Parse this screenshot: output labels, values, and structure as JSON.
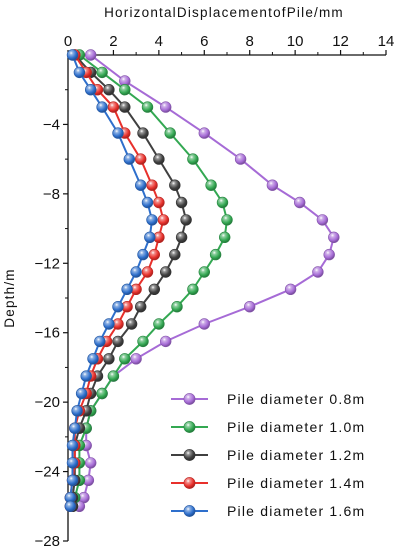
{
  "chart_data": {
    "type": "line",
    "xlabel": "HorizontalDisplacementofPile/mm",
    "ylabel": "Depth/m",
    "xlim": [
      0,
      14
    ],
    "ylim": [
      -28,
      0
    ],
    "x_ticks": [
      "0",
      "2",
      "4",
      "6",
      "8",
      "10",
      "12",
      "14"
    ],
    "y_ticks": [
      "-4",
      "-8",
      "-12",
      "-16",
      "-20",
      "-24",
      "-28"
    ],
    "x_axis_position": "top",
    "grid": false,
    "legend_position": "bottom-right",
    "series": [
      {
        "name": "Pile diameter 0.8m",
        "color": "#a66bd6",
        "points": [
          [
            1.0,
            0
          ],
          [
            2.5,
            -1.5
          ],
          [
            4.3,
            -3.0
          ],
          [
            6.0,
            -4.5
          ],
          [
            7.6,
            -6.0
          ],
          [
            9.0,
            -7.5
          ],
          [
            10.2,
            -8.5
          ],
          [
            11.2,
            -9.5
          ],
          [
            11.7,
            -10.5
          ],
          [
            11.5,
            -11.5
          ],
          [
            11.0,
            -12.5
          ],
          [
            9.8,
            -13.5
          ],
          [
            8.0,
            -14.5
          ],
          [
            6.0,
            -15.5
          ],
          [
            4.3,
            -16.5
          ],
          [
            3.0,
            -17.5
          ],
          [
            2.0,
            -18.5
          ],
          [
            1.5,
            -19.5
          ],
          [
            1.0,
            -20.5
          ],
          [
            0.8,
            -21.5
          ],
          [
            0.8,
            -22.5
          ],
          [
            1.0,
            -23.5
          ],
          [
            0.9,
            -24.5
          ],
          [
            0.7,
            -25.5
          ],
          [
            0.5,
            -26.0
          ]
        ]
      },
      {
        "name": "Pile diameter 1.0m",
        "color": "#33a852",
        "points": [
          [
            0.5,
            0
          ],
          [
            1.5,
            -1.0
          ],
          [
            2.5,
            -2.0
          ],
          [
            3.5,
            -3.0
          ],
          [
            4.5,
            -4.5
          ],
          [
            5.5,
            -6.0
          ],
          [
            6.3,
            -7.5
          ],
          [
            6.8,
            -8.5
          ],
          [
            7.0,
            -9.5
          ],
          [
            6.9,
            -10.5
          ],
          [
            6.5,
            -11.5
          ],
          [
            6.0,
            -12.5
          ],
          [
            5.5,
            -13.5
          ],
          [
            4.8,
            -14.5
          ],
          [
            4.0,
            -15.5
          ],
          [
            3.3,
            -16.5
          ],
          [
            2.5,
            -17.5
          ],
          [
            2.0,
            -18.5
          ],
          [
            1.5,
            -19.5
          ],
          [
            1.0,
            -20.5
          ],
          [
            0.8,
            -21.5
          ],
          [
            0.5,
            -22.5
          ],
          [
            0.5,
            -23.5
          ],
          [
            0.5,
            -24.5
          ],
          [
            0.3,
            -25.5
          ],
          [
            0.2,
            -26.0
          ]
        ]
      },
      {
        "name": "Pile diameter 1.2m",
        "color": "#404040",
        "points": [
          [
            0.3,
            0
          ],
          [
            1.0,
            -1.0
          ],
          [
            1.8,
            -2.0
          ],
          [
            2.5,
            -3.0
          ],
          [
            3.3,
            -4.5
          ],
          [
            4.0,
            -6.0
          ],
          [
            4.7,
            -7.5
          ],
          [
            5.0,
            -8.5
          ],
          [
            5.2,
            -9.5
          ],
          [
            5.0,
            -10.5
          ],
          [
            4.7,
            -11.5
          ],
          [
            4.3,
            -12.5
          ],
          [
            3.8,
            -13.5
          ],
          [
            3.2,
            -14.5
          ],
          [
            2.8,
            -15.5
          ],
          [
            2.2,
            -16.5
          ],
          [
            1.8,
            -17.5
          ],
          [
            1.3,
            -18.5
          ],
          [
            1.0,
            -19.5
          ],
          [
            0.8,
            -20.5
          ],
          [
            0.5,
            -21.5
          ],
          [
            0.3,
            -22.5
          ],
          [
            0.3,
            -23.5
          ],
          [
            0.3,
            -24.5
          ],
          [
            0.2,
            -25.5
          ],
          [
            0.2,
            -26.0
          ]
        ]
      },
      {
        "name": "Pile diameter 1.4m",
        "color": "#e8302b",
        "points": [
          [
            0.3,
            0
          ],
          [
            0.8,
            -1.0
          ],
          [
            1.3,
            -2.0
          ],
          [
            2.0,
            -3.0
          ],
          [
            2.5,
            -4.5
          ],
          [
            3.2,
            -6.0
          ],
          [
            3.7,
            -7.5
          ],
          [
            4.0,
            -8.5
          ],
          [
            4.2,
            -9.5
          ],
          [
            4.0,
            -10.5
          ],
          [
            3.8,
            -11.5
          ],
          [
            3.5,
            -12.5
          ],
          [
            3.0,
            -13.5
          ],
          [
            2.6,
            -14.5
          ],
          [
            2.2,
            -15.5
          ],
          [
            1.7,
            -16.5
          ],
          [
            1.3,
            -17.5
          ],
          [
            1.0,
            -18.5
          ],
          [
            0.8,
            -19.5
          ],
          [
            0.5,
            -20.5
          ],
          [
            0.3,
            -21.5
          ],
          [
            0.3,
            -22.5
          ],
          [
            0.3,
            -23.5
          ],
          [
            0.2,
            -24.5
          ],
          [
            0.1,
            -25.5
          ],
          [
            0.1,
            -26.0
          ]
        ]
      },
      {
        "name": "Pile diameter 1.6m",
        "color": "#2e6fcc",
        "points": [
          [
            0.2,
            0
          ],
          [
            0.5,
            -1.0
          ],
          [
            1.0,
            -2.0
          ],
          [
            1.5,
            -3.0
          ],
          [
            2.2,
            -4.5
          ],
          [
            2.7,
            -6.0
          ],
          [
            3.2,
            -7.5
          ],
          [
            3.5,
            -8.5
          ],
          [
            3.7,
            -9.5
          ],
          [
            3.6,
            -10.5
          ],
          [
            3.3,
            -11.5
          ],
          [
            3.0,
            -12.5
          ],
          [
            2.6,
            -13.5
          ],
          [
            2.2,
            -14.5
          ],
          [
            1.8,
            -15.5
          ],
          [
            1.4,
            -16.5
          ],
          [
            1.1,
            -17.5
          ],
          [
            0.8,
            -18.5
          ],
          [
            0.6,
            -19.5
          ],
          [
            0.4,
            -20.5
          ],
          [
            0.3,
            -21.5
          ],
          [
            0.2,
            -22.5
          ],
          [
            0.2,
            -23.5
          ],
          [
            0.2,
            -24.5
          ],
          [
            0.1,
            -25.5
          ],
          [
            0.1,
            -26.0
          ]
        ]
      }
    ]
  }
}
